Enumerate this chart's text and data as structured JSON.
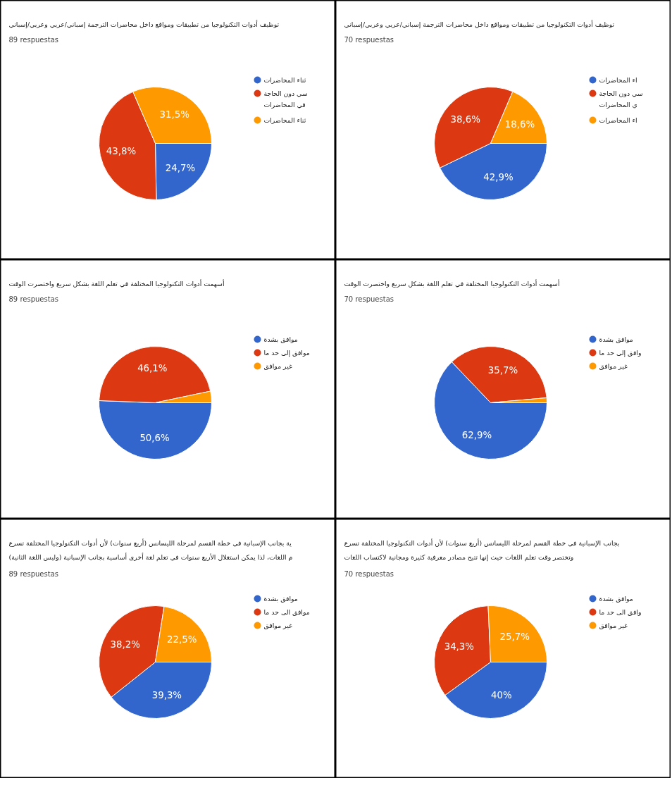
{
  "chart_data": [
    {
      "type": "pie",
      "title": "توظيف أدوات التكنولوجيا من تطبيقات ومواقع داخل محاضرات الترجمة إسباني/عربي وعربي/إسباني",
      "subtitle": "89 respuestas",
      "categories": [
        "ثناء المحاضرات",
        "سي دون الحاجة\nفي المحاضرات",
        "ثناء المحاضرات"
      ],
      "values": [
        24.7,
        43.8,
        31.5
      ],
      "colors": [
        "#3366cc",
        "#dc3912",
        "#ff9900"
      ],
      "value_labels": [
        "24,7%",
        "43,8%",
        "31,5%"
      ],
      "legend": "right"
    },
    {
      "type": "pie",
      "title": "توظيف أدوات التكنولوجيا من تطبيقات ومواقع داخل محاضرات الترجمة إسباني/عربي وعربي/إسباني",
      "subtitle": "70 respuestas",
      "categories": [
        "اء المحاضرات",
        "سي دون الحاجة\nي المحاضرات",
        "اء المحاضرات"
      ],
      "values": [
        42.9,
        38.6,
        18.6
      ],
      "colors": [
        "#3366cc",
        "#dc3912",
        "#ff9900"
      ],
      "value_labels": [
        "42,9%",
        "38,6%",
        "18,6%"
      ],
      "legend": "right"
    },
    {
      "type": "pie",
      "title": "أسهمت أدوات التكنولوجيا المختلفة في تعلم اللغة بشكل  سريع واختصرت الوقت",
      "subtitle": "89 respuestas",
      "categories": [
        "موافق بشدة",
        "موافق إلى حد ما",
        "غير موافق"
      ],
      "values": [
        50.6,
        46.1,
        3.3
      ],
      "colors": [
        "#3366cc",
        "#dc3912",
        "#ff9900"
      ],
      "value_labels": [
        "50,6%",
        "46,1%",
        null
      ],
      "legend": "right"
    },
    {
      "type": "pie",
      "title": "أسهمت أدوات التكنولوجيا المختلفة في تعلم اللغة بشكل  سريع واختصرت الوقت",
      "subtitle": "70 respuestas",
      "categories": [
        "موافق بشدة",
        "وافق إلى حد ما",
        "غير موافق"
      ],
      "values": [
        62.9,
        35.7,
        1.4
      ],
      "colors": [
        "#3366cc",
        "#dc3912",
        "#ff9900"
      ],
      "value_labels": [
        "62,9%",
        "35,7%",
        null
      ],
      "legend": "right"
    },
    {
      "type": "pie",
      "title": "ية بجانب الإسبانية في خطة القسم لمرحلة الليسانس (أربع سنوات) لأن أدوات التكنولوجيا المختلفة تسرع\nم اللغات، لذا يمكن استغلال الأربع سنوات في تعلم لغة أخرى أساسية بجانب الإسبانية (وليس اللغة الثانية)",
      "subtitle": "89 respuestas",
      "categories": [
        "موافق بشدة",
        "موافق الى حد ما",
        "غير موافق"
      ],
      "values": [
        39.3,
        38.2,
        22.5
      ],
      "colors": [
        "#3366cc",
        "#dc3912",
        "#ff9900"
      ],
      "value_labels": [
        "39,3%",
        "38,2%",
        "22,5%"
      ],
      "legend": "right"
    },
    {
      "type": "pie",
      "title": "بجانب الإسبانية في خطة القسم لمرحلة الليسانس (أربع سنوات) لأن أدوات التكنولوجيا المختلفة تسرع\nوتختصر وقت تعلم اللغات حيث إنها تتيح مصادر معرفية كثيرة ومجانية لاكتساب اللغات",
      "subtitle": "70 respuestas",
      "categories": [
        "موافق بشدة",
        "وافق الى حد ما",
        "غير موافق"
      ],
      "values": [
        40,
        34.3,
        25.7
      ],
      "colors": [
        "#3366cc",
        "#dc3912",
        "#ff9900"
      ],
      "value_labels": [
        "40%",
        "34,3%",
        "25,7%"
      ],
      "legend": "right"
    }
  ]
}
